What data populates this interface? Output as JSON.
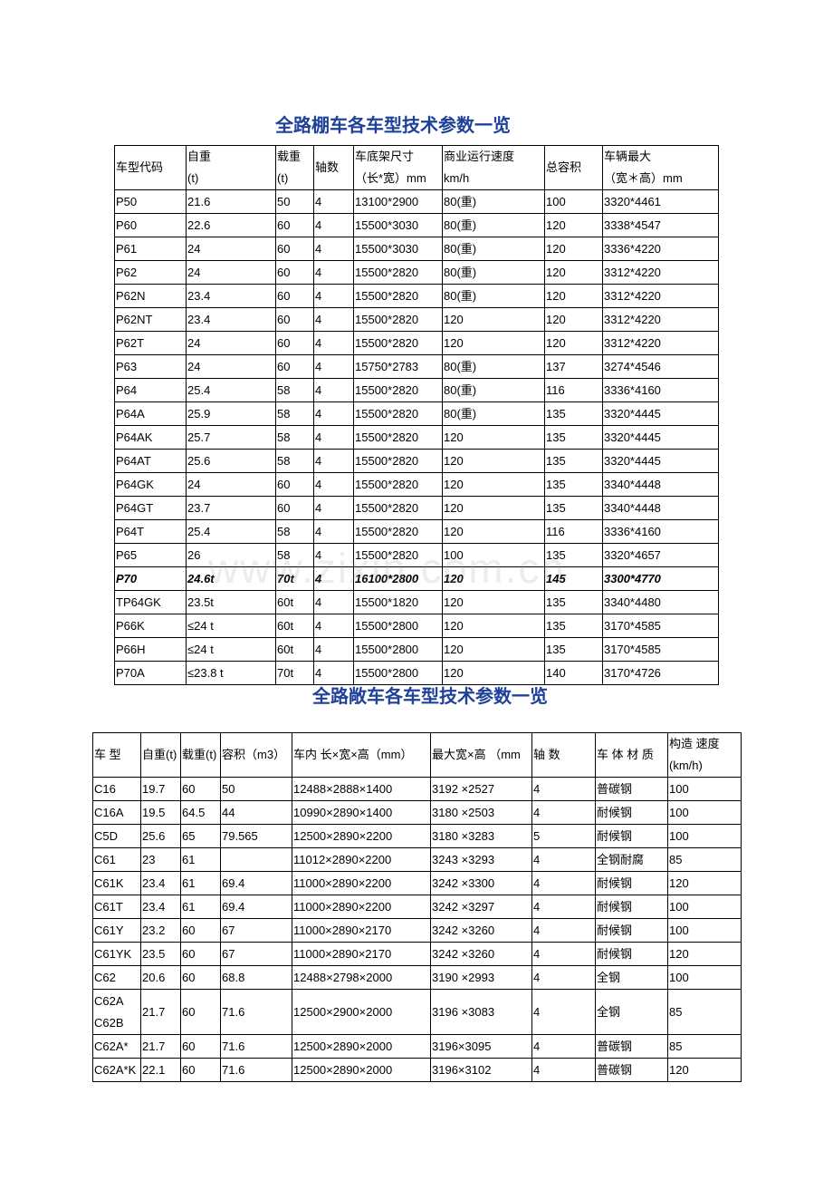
{
  "watermark": "www.zixin.com.cn",
  "table1": {
    "title": "全路棚车各车型技术参数一览",
    "headers": [
      "车型代码",
      "自重\n(t)",
      "载重\n(t)",
      "轴数",
      "车底架尺寸\n（长*宽）mm",
      "商业运行速度\nkm/h",
      "总容积",
      "车辆最大\n（宽＊高）mm"
    ],
    "rows": [
      [
        "P50",
        "21.6",
        "50",
        "4",
        "13100*2900",
        "80(重)",
        "100",
        "3320*4461"
      ],
      [
        "P60",
        "22.6",
        "60",
        "4",
        "15500*3030",
        "80(重)",
        "120",
        "3338*4547"
      ],
      [
        "P61",
        "24",
        "60",
        "4",
        "15500*3030",
        "80(重)",
        "120",
        "3336*4220"
      ],
      [
        "P62",
        "24",
        "60",
        "4",
        "15500*2820",
        "80(重)",
        "120",
        "3312*4220"
      ],
      [
        "P62N",
        "23.4",
        "60",
        "4",
        "15500*2820",
        "80(重)",
        "120",
        "3312*4220"
      ],
      [
        "P62NT",
        "23.4",
        "60",
        "4",
        "15500*2820",
        "120",
        "120",
        "3312*4220"
      ],
      [
        "P62T",
        "24",
        "60",
        "4",
        "15500*2820",
        "120",
        "120",
        "3312*4220"
      ],
      [
        "P63",
        "24",
        "60",
        "4",
        "15750*2783",
        "80(重)",
        "137",
        "3274*4546"
      ],
      [
        "P64",
        "25.4",
        "58",
        "4",
        "15500*2820",
        "80(重)",
        "116",
        "3336*4160"
      ],
      [
        "P64A",
        "25.9",
        "58",
        "4",
        "15500*2820",
        "80(重)",
        "135",
        "3320*4445"
      ],
      [
        "P64AK",
        "25.7",
        "58",
        "4",
        "15500*2820",
        "120",
        "135",
        "3320*4445"
      ],
      [
        "P64AT",
        "25.6",
        "58",
        "4",
        "15500*2820",
        "120",
        "135",
        "3320*4445"
      ],
      [
        "P64GK",
        "24",
        "60",
        "4",
        "15500*2820",
        "120",
        "135",
        "3340*4448"
      ],
      [
        "P64GT",
        "23.7",
        "60",
        "4",
        "15500*2820",
        "120",
        "135",
        "3340*4448"
      ],
      [
        "P64T",
        "25.4",
        "58",
        "4",
        "15500*2820",
        "120",
        "116",
        "3336*4160"
      ],
      [
        "P65",
        "26",
        "58",
        "4",
        "15500*2820",
        "100",
        "135",
        "3320*4657"
      ],
      [
        "P70",
        "24.6t",
        "70t",
        "4",
        "16100*2800",
        "120",
        "145",
        "3300*4770"
      ],
      [
        "TP64GK",
        "23.5t",
        "60t",
        "4",
        "15500*1820",
        "120",
        "135",
        "3340*4480"
      ],
      [
        "P66K",
        "≤24 t",
        "60t",
        "4",
        "15500*2800",
        "120",
        "135",
        "3170*4585"
      ],
      [
        "P66H",
        "≤24 t",
        "60t",
        "4",
        "15500*2800",
        "120",
        "135",
        "3170*4585"
      ],
      [
        "P70A",
        "≤23.8 t",
        "70t",
        "4",
        "15500*2800",
        "120",
        "140",
        "3170*4726"
      ]
    ],
    "emphasized_row": "P70"
  },
  "table2": {
    "title": "全路敞车各车型技术参数一览",
    "headers": [
      "车  型",
      "自重(t)",
      "载重(t)",
      "容积（m3）",
      "车内  长×宽×高（mm）",
      "最大宽×高  （mm",
      "轴  数",
      "车  体  材  质",
      "构造  速度\n(km/h)"
    ],
    "rows": [
      [
        "C16",
        "19.7",
        "60",
        "50",
        "12488×2888×1400",
        "3192 ×2527",
        "4",
        "普碳钢",
        "100"
      ],
      [
        "C16A",
        "19.5",
        "64.5",
        "44",
        "10990×2890×1400",
        "3180 ×2503",
        "4",
        "耐候钢",
        "100"
      ],
      [
        "C5D",
        "25.6",
        "65",
        "79.565",
        "12500×2890×2200",
        "3180 ×3283",
        "5",
        "耐候钢",
        "100"
      ],
      [
        "C61",
        "23",
        "61",
        "",
        "11012×2890×2200",
        "3243 ×3293",
        "4",
        "全钢耐腐",
        "85"
      ],
      [
        "C61K",
        "23.4",
        "61",
        "69.4",
        "11000×2890×2200",
        "3242 ×3300",
        "4",
        "耐候钢",
        "120"
      ],
      [
        "C61T",
        "23.4",
        "61",
        "69.4",
        "11000×2890×2200",
        "3242 ×3297",
        "4",
        "耐候钢",
        "100"
      ],
      [
        "C61Y",
        "23.2",
        "60",
        "67",
        "11000×2890×2170",
        "3242 ×3260",
        "4",
        "耐候钢",
        "100"
      ],
      [
        "C61YK",
        "23.5",
        "60",
        "67",
        "11000×2890×2170",
        "3242 ×3260",
        "4",
        "耐候钢",
        "120"
      ],
      [
        "C62",
        "20.6",
        "60",
        "68.8",
        "12488×2798×2000",
        "3190 ×2993",
        "4",
        "全钢",
        "100"
      ],
      [
        "C62A\nC62B",
        "21.7",
        "60",
        "71.6",
        "12500×2900×2000",
        "3196 ×3083",
        "4",
        "全钢",
        "85"
      ],
      [
        "C62A*",
        "21.7",
        "60",
        "71.6",
        "12500×2890×2000",
        "3196×3095",
        "4",
        "普碳钢",
        "85"
      ],
      [
        "C62A*K",
        "22.1",
        "60",
        "71.6",
        "12500×2890×2000",
        "3196×3102",
        "4",
        "普碳钢",
        "120"
      ]
    ]
  }
}
